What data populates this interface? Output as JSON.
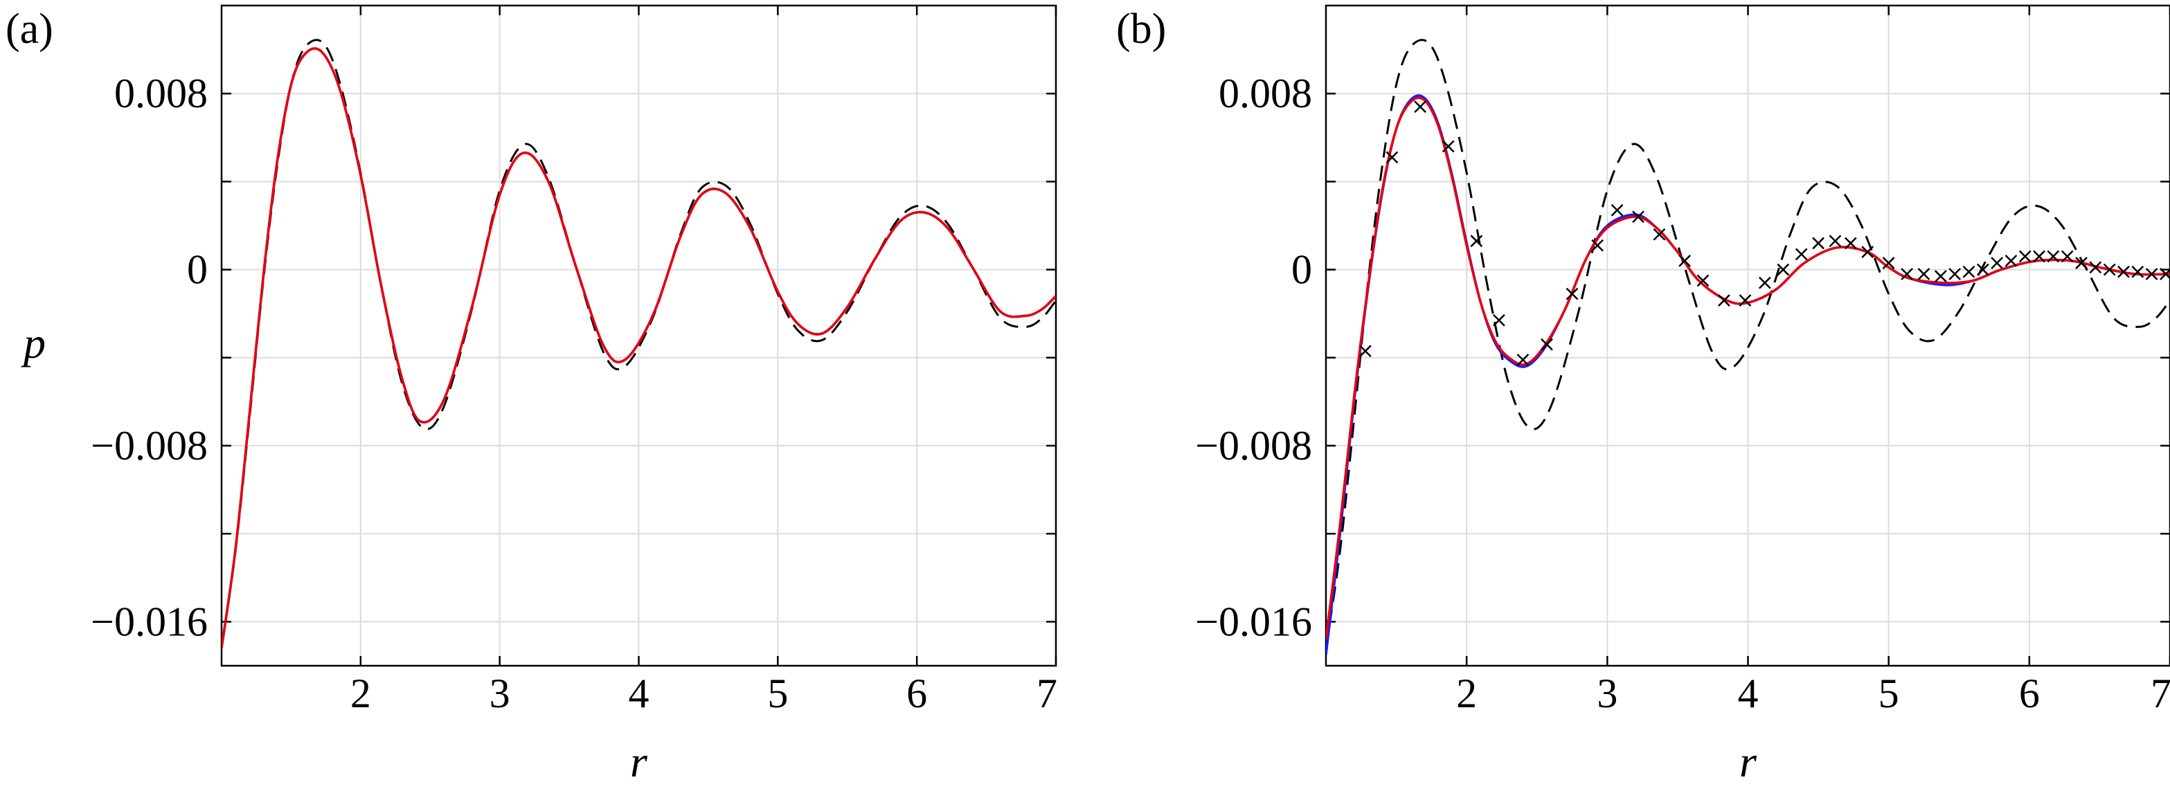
{
  "figure": {
    "panels": [
      {
        "label": "(a)"
      },
      {
        "label": "(b)"
      }
    ]
  },
  "chart_data": [
    {
      "type": "line",
      "panel_label": "(a)",
      "xlabel": "r",
      "ylabel": "p",
      "xlim": [
        1,
        7
      ],
      "ylim": [
        -0.018,
        0.012
      ],
      "xticks": [
        2,
        3,
        4,
        5,
        6,
        7
      ],
      "xtick_labels": [
        "2",
        "3",
        "4",
        "5",
        "6",
        "7"
      ],
      "yticks": [
        -0.016,
        -0.008,
        0,
        0.008
      ],
      "ytick_labels": [
        "−0.016",
        "−0.008",
        "0",
        "0.008"
      ],
      "grid": true,
      "series": [
        {
          "style": "black-dashed",
          "color": "#000000",
          "x": [
            1.0,
            1.1,
            1.2,
            1.3,
            1.4,
            1.5,
            1.6,
            1.73,
            1.85,
            2.0,
            2.15,
            2.3,
            2.45,
            2.6,
            2.8,
            3.0,
            3.18,
            3.35,
            3.55,
            3.75,
            3.9,
            4.1,
            4.3,
            4.45,
            4.63,
            4.8,
            5.0,
            5.15,
            5.32,
            5.5,
            5.7,
            5.88,
            6.05,
            6.22,
            6.4,
            6.6,
            6.78,
            6.9,
            7.0
          ],
          "y": [
            -0.0172,
            -0.0128,
            -0.0068,
            -0.0005,
            0.0047,
            0.0084,
            0.0101,
            0.0103,
            0.0085,
            0.0044,
            -0.0008,
            -0.0052,
            -0.0072,
            -0.0062,
            -0.0018,
            0.0036,
            0.0057,
            0.0042,
            0.0001,
            -0.0038,
            -0.0044,
            -0.0022,
            0.0016,
            0.0037,
            0.0038,
            0.0021,
            -0.0011,
            -0.0028,
            -0.0032,
            -0.0019,
            0.0005,
            0.0024,
            0.0029,
            0.0021,
            0.0001,
            -0.0022,
            -0.0026,
            -0.0022,
            -0.0014
          ]
        },
        {
          "style": "blue-solid",
          "color": "#1a1aff",
          "x": [
            1.0,
            1.1,
            1.2,
            1.3,
            1.4,
            1.5,
            1.6,
            1.72,
            1.85,
            2.0,
            2.15,
            2.3,
            2.43,
            2.6,
            2.8,
            3.0,
            3.17,
            3.35,
            3.55,
            3.75,
            3.9,
            4.1,
            4.3,
            4.45,
            4.62,
            4.8,
            5.0,
            5.15,
            5.32,
            5.5,
            5.7,
            5.88,
            6.05,
            6.22,
            6.4,
            6.6,
            6.78,
            6.9,
            7.0
          ],
          "y": [
            -0.0172,
            -0.0127,
            -0.0066,
            -0.0003,
            0.0049,
            0.0084,
            0.0098,
            0.0099,
            0.0082,
            0.0043,
            -0.0008,
            -0.005,
            -0.0069,
            -0.0059,
            -0.0017,
            0.0034,
            0.0053,
            0.004,
            0.0001,
            -0.0035,
            -0.0041,
            -0.0021,
            0.0015,
            0.0034,
            0.0035,
            0.0019,
            -0.001,
            -0.0025,
            -0.0029,
            -0.0017,
            0.0005,
            0.0022,
            0.0026,
            0.0019,
            0.0001,
            -0.0019,
            -0.0021,
            -0.0018,
            -0.0012
          ]
        },
        {
          "style": "red-solid",
          "color": "#e8000b",
          "x": [
            1.0,
            1.1,
            1.2,
            1.3,
            1.4,
            1.5,
            1.6,
            1.72,
            1.85,
            2.0,
            2.15,
            2.3,
            2.43,
            2.6,
            2.8,
            3.0,
            3.17,
            3.35,
            3.55,
            3.75,
            3.9,
            4.1,
            4.3,
            4.45,
            4.62,
            4.8,
            5.0,
            5.15,
            5.32,
            5.5,
            5.7,
            5.88,
            6.05,
            6.22,
            6.4,
            6.6,
            6.78,
            6.9,
            7.0
          ],
          "y": [
            -0.0172,
            -0.0127,
            -0.0066,
            -0.0003,
            0.0049,
            0.0084,
            0.0098,
            0.0099,
            0.0082,
            0.0043,
            -0.0008,
            -0.005,
            -0.0069,
            -0.0059,
            -0.0017,
            0.0034,
            0.0053,
            0.004,
            0.0001,
            -0.0035,
            -0.0041,
            -0.0021,
            0.0015,
            0.0034,
            0.0035,
            0.0019,
            -0.001,
            -0.0025,
            -0.0029,
            -0.0017,
            0.0005,
            0.0022,
            0.0026,
            0.0019,
            0.0001,
            -0.0019,
            -0.0021,
            -0.0018,
            -0.0012
          ]
        }
      ]
    },
    {
      "type": "line",
      "panel_label": "(b)",
      "xlabel": "r",
      "ylabel": "",
      "xlim": [
        1,
        7
      ],
      "ylim": [
        -0.018,
        0.012
      ],
      "xticks": [
        2,
        3,
        4,
        5,
        6,
        7
      ],
      "xtick_labels": [
        "2",
        "3",
        "4",
        "5",
        "6",
        "7"
      ],
      "yticks": [
        -0.016,
        -0.008,
        0,
        0.008
      ],
      "ytick_labels": [
        "−0.016",
        "−0.008",
        "0",
        "0.008"
      ],
      "grid": true,
      "series": [
        {
          "style": "black-dashed",
          "color": "#000000",
          "x": [
            1.0,
            1.1,
            1.2,
            1.3,
            1.4,
            1.5,
            1.6,
            1.73,
            1.85,
            2.0,
            2.15,
            2.3,
            2.45,
            2.6,
            2.8,
            3.0,
            3.18,
            3.35,
            3.55,
            3.75,
            3.9,
            4.1,
            4.3,
            4.45,
            4.63,
            4.8,
            5.0,
            5.15,
            5.32,
            5.5,
            5.7,
            5.88,
            6.05,
            6.22,
            6.4,
            6.6,
            6.78,
            6.9,
            7.0
          ],
          "y": [
            -0.0172,
            -0.0128,
            -0.0068,
            -0.0005,
            0.0047,
            0.0084,
            0.0101,
            0.0103,
            0.0085,
            0.0044,
            -0.0008,
            -0.0052,
            -0.0072,
            -0.0062,
            -0.0018,
            0.0036,
            0.0057,
            0.0042,
            0.0001,
            -0.0038,
            -0.0044,
            -0.0022,
            0.0016,
            0.0037,
            0.0038,
            0.0021,
            -0.0011,
            -0.0028,
            -0.0032,
            -0.0019,
            0.0005,
            0.0024,
            0.0029,
            0.0021,
            0.0001,
            -0.0022,
            -0.0026,
            -0.0022,
            -0.0014
          ]
        },
        {
          "style": "blue-solid",
          "color": "#1a1aff",
          "x": [
            1.0,
            1.1,
            1.2,
            1.3,
            1.4,
            1.5,
            1.6,
            1.7,
            1.8,
            1.9,
            2.0,
            2.1,
            2.2,
            2.3,
            2.42,
            2.55,
            2.7,
            2.85,
            3.0,
            3.2,
            3.35,
            3.5,
            3.65,
            3.85,
            4.0,
            4.2,
            4.4,
            4.63,
            4.85,
            5.0,
            5.15,
            5.4,
            5.6,
            5.8,
            6.05,
            6.3,
            6.5,
            6.75,
            7.0
          ],
          "y": [
            -0.0175,
            -0.012,
            -0.006,
            -0.0008,
            0.0035,
            0.0064,
            0.0077,
            0.0078,
            0.0066,
            0.0042,
            0.0012,
            -0.0015,
            -0.0033,
            -0.0041,
            -0.0044,
            -0.0036,
            -0.0018,
            0.0005,
            0.002,
            0.0025,
            0.0019,
            0.0008,
            -0.0005,
            -0.0014,
            -0.0015,
            -0.0009,
            0.0003,
            0.001,
            0.0008,
            0.0001,
            -0.0004,
            -0.0007,
            -0.0005,
            0.0,
            0.0004,
            0.0004,
            0.0001,
            -0.0002,
            -0.0002
          ]
        },
        {
          "style": "red-solid",
          "color": "#e8000b",
          "x": [
            1.0,
            1.1,
            1.2,
            1.3,
            1.4,
            1.5,
            1.6,
            1.7,
            1.8,
            1.9,
            2.0,
            2.1,
            2.2,
            2.3,
            2.42,
            2.55,
            2.7,
            2.85,
            3.0,
            3.2,
            3.35,
            3.5,
            3.65,
            3.85,
            4.0,
            4.2,
            4.4,
            4.63,
            4.85,
            5.0,
            5.15,
            5.4,
            5.6,
            5.8,
            6.05,
            6.3,
            6.5,
            6.75,
            7.0
          ],
          "y": [
            -0.0168,
            -0.0116,
            -0.0058,
            -0.0007,
            0.0036,
            0.0064,
            0.0076,
            0.0077,
            0.0065,
            0.0041,
            0.0011,
            -0.0015,
            -0.0032,
            -0.004,
            -0.0043,
            -0.0035,
            -0.0018,
            0.0005,
            0.0019,
            0.0024,
            0.0019,
            0.0008,
            -0.0005,
            -0.0014,
            -0.0015,
            -0.0009,
            0.0003,
            0.001,
            0.0008,
            0.0001,
            -0.0004,
            -0.0006,
            -0.0005,
            0.0,
            0.0004,
            0.0004,
            0.0001,
            -0.0002,
            -0.0002
          ]
        },
        {
          "style": "black-cross-markers",
          "color": "#000000",
          "x": [
            1.28,
            1.47,
            1.67,
            1.87,
            2.07,
            2.23,
            2.4,
            2.57,
            2.75,
            2.93,
            3.07,
            3.22,
            3.37,
            3.55,
            3.68,
            3.83,
            3.98,
            4.12,
            4.25,
            4.38,
            4.5,
            4.62,
            4.73,
            4.85,
            5.0,
            5.13,
            5.25,
            5.37,
            5.47,
            5.57,
            5.67,
            5.77,
            5.87,
            5.97,
            6.07,
            6.17,
            6.27,
            6.37,
            6.47,
            6.57,
            6.67,
            6.77,
            6.87,
            6.97
          ],
          "y": [
            -0.0037,
            0.0051,
            0.0074,
            0.0056,
            0.0013,
            -0.0023,
            -0.0041,
            -0.0034,
            -0.0011,
            0.0011,
            0.0027,
            0.0024,
            0.0016,
            0.0004,
            -0.0005,
            -0.0014,
            -0.0014,
            -0.0006,
            0.0,
            0.0007,
            0.0012,
            0.0013,
            0.0012,
            0.0008,
            0.0003,
            -0.0002,
            -0.0002,
            -0.0003,
            -0.0002,
            -0.0001,
            0.0,
            0.0003,
            0.0004,
            0.0006,
            0.0006,
            0.0006,
            0.0006,
            0.0003,
            0.0001,
            0.0,
            -0.0001,
            -0.0001,
            -0.0002,
            -0.0002
          ]
        }
      ]
    }
  ]
}
